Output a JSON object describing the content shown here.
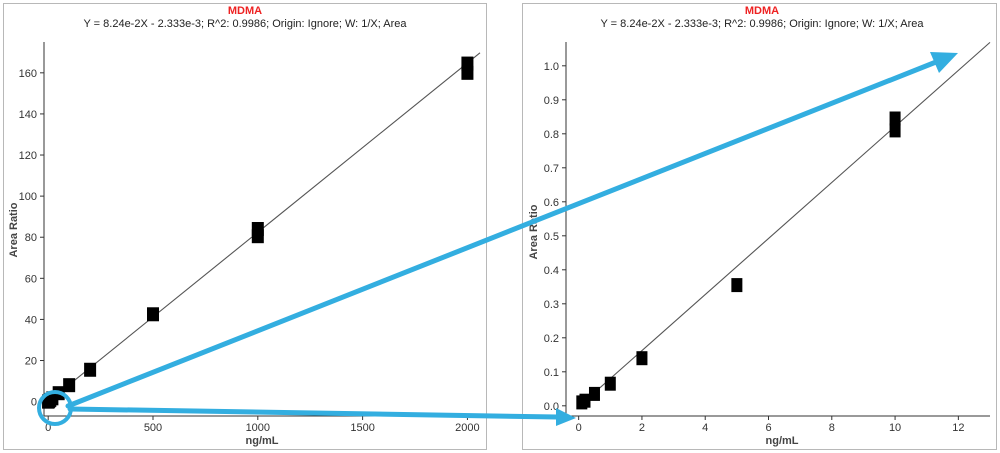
{
  "accent_color": "#33aee0",
  "title_color": "#ee2222",
  "chart_data": [
    {
      "type": "scatter",
      "title": "MDMA",
      "subtitle": "Y = 8.24e-2X - 2.333e-3; R^2: 0.9986; Origin: Ignore; W: 1/X; Area",
      "xlabel": "ng/mL",
      "ylabel": "Area Ratio",
      "xlim": [
        -20,
        2060
      ],
      "ylim": [
        -7,
        175
      ],
      "xticks": [
        0,
        500,
        1000,
        1500,
        2000
      ],
      "xtick_labels": [
        "0",
        "500",
        "1000",
        "1500",
        "2000"
      ],
      "yticks": [
        0,
        20,
        40,
        60,
        80,
        100,
        120,
        140,
        160
      ],
      "ytick_labels": [
        "0",
        "20",
        "40",
        "60",
        "80",
        "100",
        "120",
        "140",
        "160"
      ],
      "fit": {
        "slope": 0.0824,
        "intercept": -0.002333,
        "x_range": [
          0,
          2060
        ]
      },
      "points": {
        "x": [
          0.1,
          0.2,
          0.5,
          1,
          2,
          5,
          10,
          20,
          50,
          100,
          200,
          500,
          1000,
          1000,
          2000,
          2000
        ],
        "y": [
          0.01,
          0.02,
          0.04,
          0.07,
          0.14,
          0.35,
          0.84,
          1.6,
          4.1,
          8,
          15.5,
          42.5,
          80.5,
          84,
          160,
          164.5
        ]
      },
      "grid": false
    },
    {
      "type": "scatter",
      "title": "MDMA",
      "subtitle": "Y = 8.24e-2X - 2.333e-3; R^2: 0.9986; Origin: Ignore; W: 1/X; Area",
      "xlabel": "ng/mL",
      "ylabel": "Area Ratio",
      "xlim": [
        -0.4,
        13
      ],
      "ylim": [
        -0.03,
        1.07
      ],
      "xticks": [
        0,
        2,
        4,
        6,
        8,
        10,
        12
      ],
      "xtick_labels": [
        "0",
        "2",
        "4",
        "6",
        "8",
        "10",
        "12"
      ],
      "yticks": [
        0,
        0.1,
        0.2,
        0.3,
        0.4,
        0.5,
        0.6,
        0.7,
        0.8,
        0.9,
        1.0
      ],
      "ytick_labels": [
        "0.0",
        "0.1",
        "0.2",
        "0.3",
        "0.4",
        "0.5",
        "0.6",
        "0.7",
        "0.8",
        "0.9",
        "1.0"
      ],
      "fit": {
        "slope": 0.0824,
        "intercept": -0.002333,
        "x_range": [
          0,
          13
        ]
      },
      "points": {
        "x": [
          0.1,
          0.2,
          0.5,
          1,
          2,
          5,
          10,
          10
        ],
        "y": [
          0.01,
          0.015,
          0.035,
          0.065,
          0.14,
          0.355,
          0.81,
          0.845
        ]
      },
      "grid": false
    }
  ]
}
